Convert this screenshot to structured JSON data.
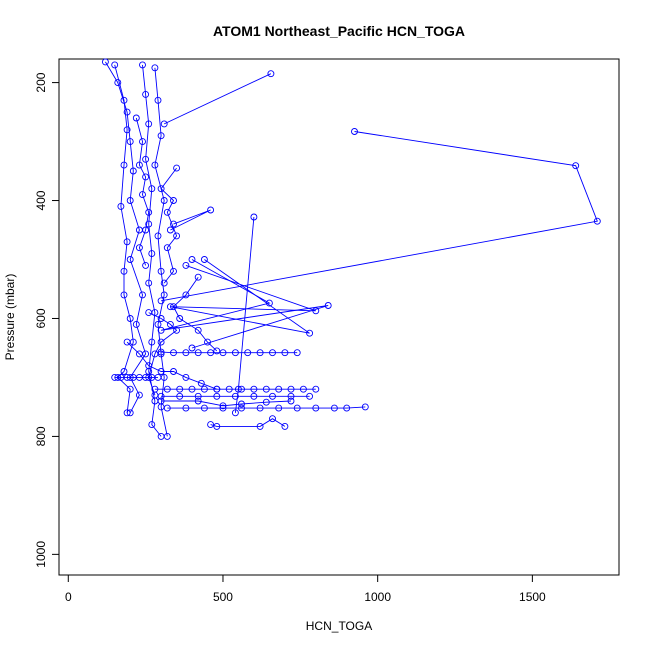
{
  "chart_data": {
    "type": "line",
    "title": "ATOM1 Northeast_Pacific HCN_TOGA",
    "xlabel": "HCN_TOGA",
    "ylabel": "Pressure (mbar)",
    "xlim": [
      -30,
      1780
    ],
    "ylim": [
      1035,
      160
    ],
    "y_reversed": true,
    "x_ticks": [
      0,
      500,
      1000,
      1500
    ],
    "y_ticks": [
      200,
      400,
      600,
      800,
      1000
    ],
    "x_tick_labels": [
      "0",
      "500",
      "1000",
      "1500"
    ],
    "y_tick_labels": [
      "200",
      "400",
      "600",
      "800",
      "1000"
    ],
    "grid": false,
    "legend": "none",
    "series_color": "#0000ff",
    "marker": "open-circle",
    "series": [
      {
        "points": [
          [
            120,
            165
          ],
          [
            160,
            200
          ],
          [
            190,
            250
          ],
          [
            200,
            300
          ],
          [
            210,
            350
          ],
          [
            200,
            400
          ],
          [
            230,
            450
          ],
          [
            200,
            500
          ],
          [
            240,
            560
          ],
          [
            220,
            610
          ],
          [
            250,
            660
          ],
          [
            200,
            700
          ],
          [
            230,
            730
          ],
          [
            200,
            760
          ]
        ]
      },
      {
        "points": [
          [
            150,
            170
          ],
          [
            180,
            230
          ],
          [
            190,
            280
          ],
          [
            180,
            340
          ],
          [
            170,
            410
          ],
          [
            190,
            470
          ],
          [
            180,
            520
          ],
          [
            180,
            560
          ],
          [
            200,
            600
          ],
          [
            210,
            640
          ],
          [
            180,
            690
          ],
          [
            160,
            700
          ],
          [
            200,
            720
          ],
          [
            190,
            760
          ]
        ]
      },
      {
        "points": [
          [
            240,
            170
          ],
          [
            250,
            220
          ],
          [
            260,
            270
          ],
          [
            250,
            330
          ],
          [
            270,
            380
          ],
          [
            260,
            440
          ],
          [
            270,
            490
          ],
          [
            260,
            540
          ],
          [
            280,
            590
          ],
          [
            270,
            640
          ],
          [
            260,
            690
          ],
          [
            280,
            740
          ],
          [
            270,
            780
          ],
          [
            300,
            800
          ]
        ]
      },
      {
        "points": [
          [
            280,
            175
          ],
          [
            290,
            230
          ],
          [
            300,
            290
          ],
          [
            280,
            340
          ],
          [
            310,
            400
          ],
          [
            290,
            460
          ],
          [
            300,
            520
          ],
          [
            310,
            560
          ],
          [
            290,
            610
          ],
          [
            300,
            660
          ],
          [
            310,
            700
          ],
          [
            300,
            750
          ],
          [
            320,
            800
          ]
        ]
      },
      {
        "points": [
          [
            310,
            270
          ],
          [
            655,
            185
          ]
        ]
      },
      {
        "points": [
          [
            925,
            283
          ],
          [
            1640,
            341
          ],
          [
            1710,
            435
          ],
          [
            300,
            570
          ]
        ]
      },
      {
        "points": [
          [
            340,
            440
          ],
          [
            460,
            416
          ],
          [
            330,
            450
          ]
        ]
      },
      {
        "points": [
          [
            600,
            428
          ],
          [
            550,
            720
          ],
          [
            540,
            760
          ]
        ]
      },
      {
        "points": [
          [
            400,
            500
          ],
          [
            650,
            574
          ],
          [
            300,
            620
          ],
          [
            840,
            578
          ],
          [
            400,
            650
          ]
        ]
      },
      {
        "points": [
          [
            380,
            510
          ],
          [
            800,
            587
          ],
          [
            330,
            580
          ],
          [
            780,
            625
          ],
          [
            440,
            500
          ]
        ]
      },
      {
        "points": [
          [
            300,
            657
          ],
          [
            340,
            658
          ],
          [
            380,
            658
          ],
          [
            420,
            658
          ],
          [
            460,
            658
          ],
          [
            500,
            658
          ],
          [
            540,
            658
          ],
          [
            580,
            658
          ],
          [
            620,
            658
          ],
          [
            660,
            658
          ],
          [
            700,
            658
          ],
          [
            740,
            658
          ]
        ]
      },
      {
        "points": [
          [
            150,
            700
          ],
          [
            170,
            700
          ],
          [
            190,
            700
          ],
          [
            210,
            700
          ],
          [
            230,
            700
          ],
          [
            250,
            700
          ],
          [
            270,
            700
          ],
          [
            290,
            700
          ]
        ]
      },
      {
        "points": [
          [
            280,
            720
          ],
          [
            320,
            720
          ],
          [
            360,
            720
          ],
          [
            400,
            720
          ],
          [
            440,
            720
          ],
          [
            480,
            720
          ],
          [
            520,
            720
          ],
          [
            560,
            720
          ],
          [
            600,
            720
          ],
          [
            640,
            720
          ],
          [
            680,
            720
          ],
          [
            720,
            720
          ],
          [
            760,
            720
          ],
          [
            800,
            720
          ]
        ]
      },
      {
        "points": [
          [
            300,
            732
          ],
          [
            360,
            732
          ],
          [
            420,
            732
          ],
          [
            480,
            732
          ],
          [
            540,
            732
          ],
          [
            600,
            732
          ],
          [
            660,
            732
          ],
          [
            720,
            732
          ],
          [
            780,
            732
          ]
        ]
      },
      {
        "points": [
          [
            320,
            752
          ],
          [
            380,
            752
          ],
          [
            440,
            752
          ],
          [
            500,
            752
          ],
          [
            560,
            752
          ],
          [
            620,
            752
          ],
          [
            680,
            752
          ],
          [
            740,
            752
          ],
          [
            800,
            752
          ],
          [
            860,
            752
          ],
          [
            900,
            752
          ],
          [
            960,
            750
          ]
        ]
      },
      {
        "points": [
          [
            460,
            780
          ],
          [
            480,
            783
          ],
          [
            620,
            783
          ],
          [
            660,
            770
          ],
          [
            700,
            783
          ]
        ]
      },
      {
        "points": [
          [
            300,
            740
          ],
          [
            420,
            740
          ],
          [
            500,
            748
          ],
          [
            560,
            745
          ],
          [
            640,
            742
          ],
          [
            720,
            740
          ]
        ]
      },
      {
        "points": [
          [
            190,
            640
          ],
          [
            230,
            660
          ],
          [
            260,
            680
          ],
          [
            300,
            690
          ],
          [
            340,
            690
          ],
          [
            380,
            700
          ],
          [
            430,
            710
          ],
          [
            480,
            720
          ]
        ]
      },
      {
        "points": [
          [
            260,
            590
          ],
          [
            300,
            600
          ],
          [
            330,
            610
          ],
          [
            350,
            620
          ],
          [
            300,
            640
          ],
          [
            280,
            660
          ],
          [
            260,
            700
          ],
          [
            280,
            730
          ]
        ]
      },
      {
        "points": [
          [
            420,
            530
          ],
          [
            380,
            560
          ],
          [
            340,
            580
          ],
          [
            360,
            600
          ],
          [
            420,
            620
          ],
          [
            450,
            640
          ],
          [
            480,
            655
          ]
        ]
      },
      {
        "points": [
          [
            350,
            345
          ],
          [
            300,
            380
          ],
          [
            340,
            400
          ],
          [
            320,
            420
          ],
          [
            350,
            460
          ],
          [
            320,
            480
          ],
          [
            340,
            520
          ],
          [
            310,
            540
          ]
        ]
      },
      {
        "points": [
          [
            220,
            260
          ],
          [
            240,
            300
          ],
          [
            230,
            340
          ],
          [
            250,
            360
          ],
          [
            240,
            390
          ],
          [
            260,
            420
          ],
          [
            250,
            450
          ],
          [
            230,
            480
          ],
          [
            250,
            510
          ]
        ]
      }
    ]
  }
}
